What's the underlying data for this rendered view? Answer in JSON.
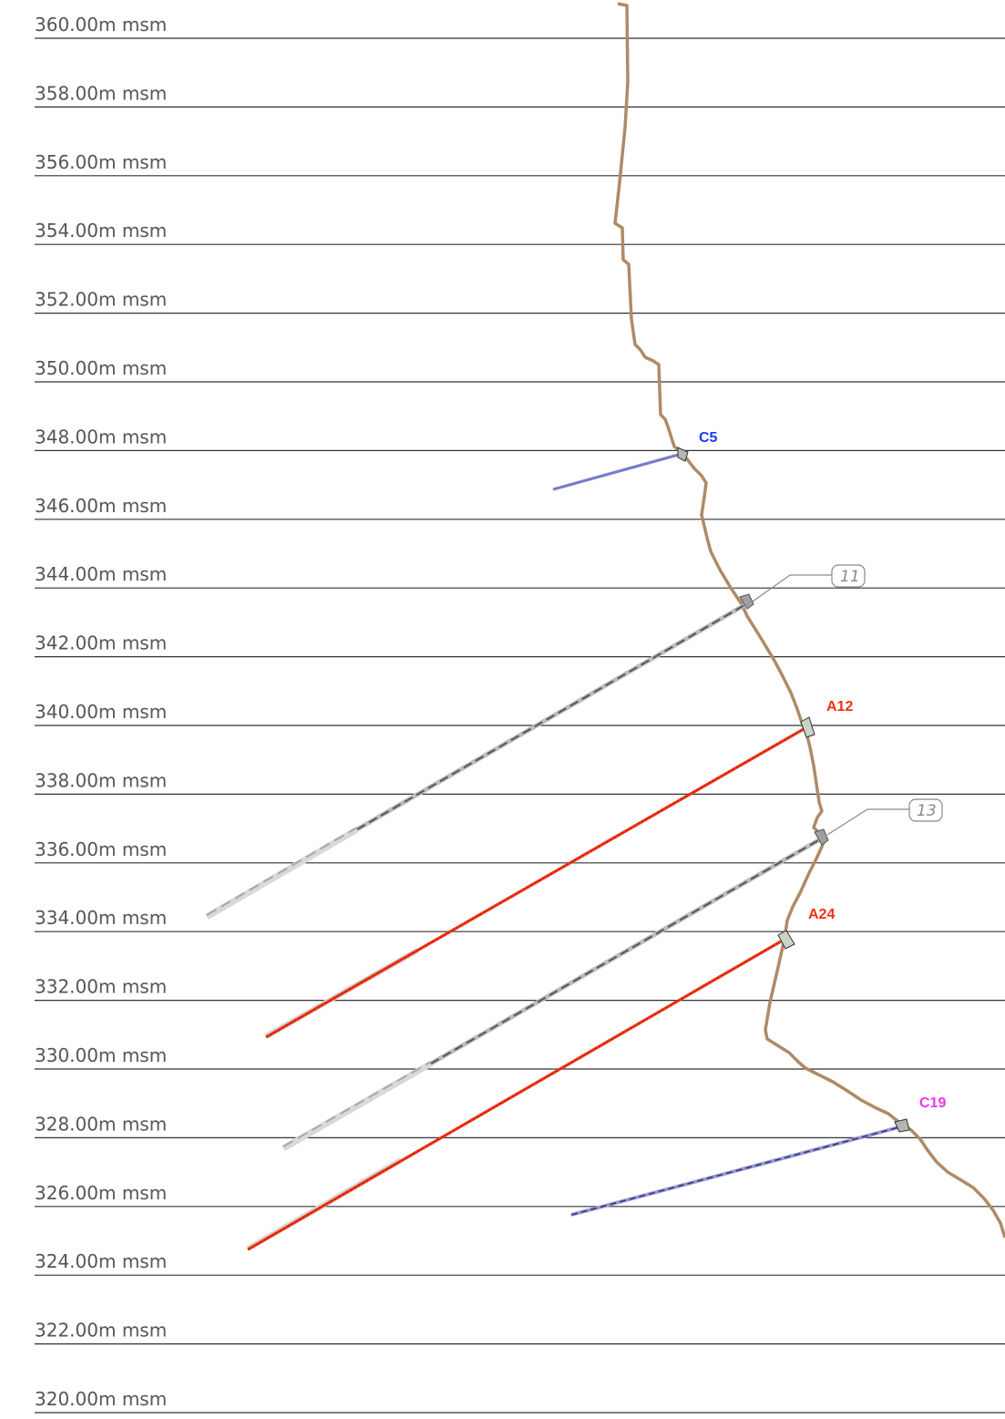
{
  "elevation_levels": [
    {
      "value": 360,
      "label": "360.00m msm"
    },
    {
      "value": 358,
      "label": "358.00m msm"
    },
    {
      "value": 356,
      "label": "356.00m msm"
    },
    {
      "value": 354,
      "label": "354.00m msm"
    },
    {
      "value": 352,
      "label": "352.00m msm"
    },
    {
      "value": 350,
      "label": "350.00m msm"
    },
    {
      "value": 348,
      "label": "348.00m msm"
    },
    {
      "value": 346,
      "label": "346.00m msm"
    },
    {
      "value": 344,
      "label": "344.00m msm"
    },
    {
      "value": 342,
      "label": "342.00m msm"
    },
    {
      "value": 340,
      "label": "340.00m msm"
    },
    {
      "value": 338,
      "label": "338.00m msm"
    },
    {
      "value": 336,
      "label": "336.00m msm"
    },
    {
      "value": 334,
      "label": "334.00m msm"
    },
    {
      "value": 332,
      "label": "332.00m msm"
    },
    {
      "value": 330,
      "label": "330.00m msm"
    },
    {
      "value": 328,
      "label": "328.00m msm"
    },
    {
      "value": 326,
      "label": "326.00m msm"
    },
    {
      "value": 324,
      "label": "324.00m msm"
    },
    {
      "value": 322,
      "label": "322.00m msm"
    },
    {
      "value": 320,
      "label": "320.00m msm"
    }
  ],
  "anchors": {
    "c5": {
      "label": "C5",
      "color": "#1a3cf0",
      "line_color": "#7a7acc"
    },
    "a12": {
      "label": "A12",
      "color": "#f03010",
      "line_color": "#ee3311"
    },
    "a24": {
      "label": "A24",
      "color": "#f03010",
      "line_color": "#ee3311"
    },
    "c19": {
      "label": "C19",
      "color": "#ee33ee",
      "line_color": "#6a6ab8"
    }
  },
  "tags": {
    "t11": {
      "label": "11",
      "color": "#8a8a8a"
    },
    "t13": {
      "label": "13",
      "color": "#8a8a8a"
    }
  },
  "colors": {
    "terrain": "#b08a66",
    "reference_line": "#333333",
    "elevation_text": "#555555",
    "existing_anchor": "#777777"
  }
}
